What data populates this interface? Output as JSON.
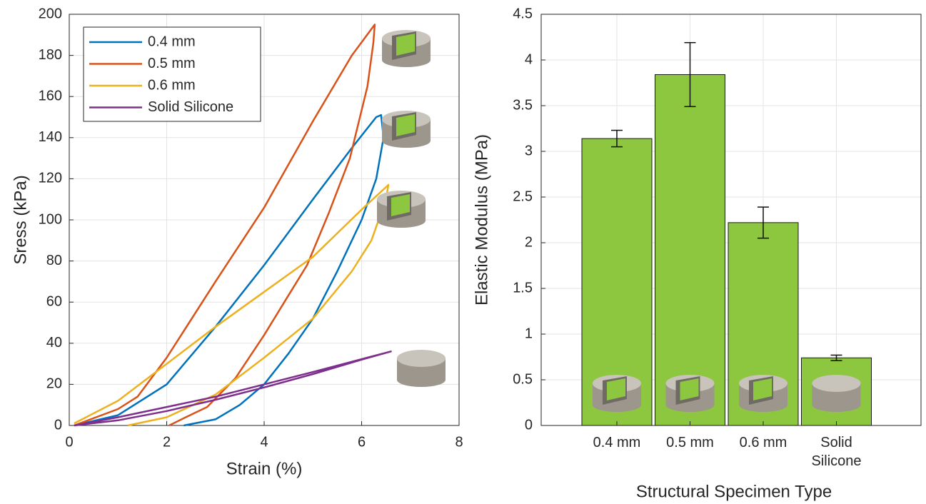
{
  "chart_data": [
    {
      "type": "line",
      "xlabel": "Strain (%)",
      "ylabel": "Sress (kPa)",
      "xlim": [
        0,
        8
      ],
      "xticks": [
        0,
        2,
        4,
        6,
        8
      ],
      "ylim": [
        0,
        200
      ],
      "yticks": [
        0,
        20,
        40,
        60,
        80,
        100,
        120,
        140,
        160,
        180,
        200
      ],
      "grid": true,
      "legend": "upper left",
      "series": [
        {
          "name": "0.4 mm",
          "color": "#0072bd",
          "x": [
            0.1,
            1,
            2,
            3,
            4,
            5,
            5.8,
            6.3,
            6.4,
            6.45,
            6.3,
            6,
            5.5,
            5,
            4.5,
            4,
            3.5,
            3,
            2.35
          ],
          "values": [
            0,
            5,
            20,
            48,
            78,
            110,
            135,
            150,
            151,
            140,
            120,
            100,
            75,
            52,
            35,
            20,
            10,
            3,
            0
          ]
        },
        {
          "name": "0.5 mm",
          "color": "#d95319",
          "x": [
            0.1,
            1,
            1.4,
            2,
            3,
            4,
            5,
            5.8,
            6.27,
            6.24,
            6.12,
            5.76,
            5.32,
            4.88,
            4.44,
            4,
            3.41,
            2.83,
            2.39,
            2.05
          ],
          "values": [
            0,
            8,
            14,
            33,
            70,
            106,
            148,
            180,
            195,
            186,
            165,
            130,
            103,
            78,
            61,
            44,
            23,
            9,
            4,
            0
          ]
        },
        {
          "name": "0.6 mm",
          "color": "#edb120",
          "x": [
            0.1,
            1,
            2,
            3,
            4,
            5,
            6,
            6.55,
            6.5,
            6.2,
            5.8,
            5,
            4,
            3,
            2,
            1.2
          ],
          "values": [
            1,
            12,
            30,
            48,
            65,
            82,
            105,
            117,
            110,
            90,
            75,
            52,
            33,
            15,
            4,
            0
          ]
        },
        {
          "name": "Solid Silicone",
          "color": "#7e2f8e",
          "x": [
            0.1,
            1,
            2,
            3,
            4,
            5,
            6.6,
            6,
            5,
            4,
            3,
            2,
            1,
            0.1
          ],
          "values": [
            0,
            4,
            9,
            14,
            20,
            26,
            36,
            32,
            25,
            18.5,
            12.5,
            7,
            2.5,
            0
          ]
        }
      ]
    },
    {
      "type": "bar",
      "xlabel": "Structural Specimen Type",
      "ylabel": "Elastic Modulus (MPa)",
      "categories": [
        "0.4 mm",
        "0.5 mm",
        "0.6 mm",
        "Solid Silicone"
      ],
      "values": [
        3.14,
        3.84,
        2.22,
        0.74
      ],
      "errors": [
        0.09,
        0.35,
        0.17,
        0.03
      ],
      "color": "#8dc63f",
      "ylim": [
        0,
        4.5
      ],
      "yticks": [
        0,
        0.5,
        1,
        1.5,
        2,
        2.5,
        3,
        3.5,
        4,
        4.5
      ],
      "grid": true
    }
  ]
}
